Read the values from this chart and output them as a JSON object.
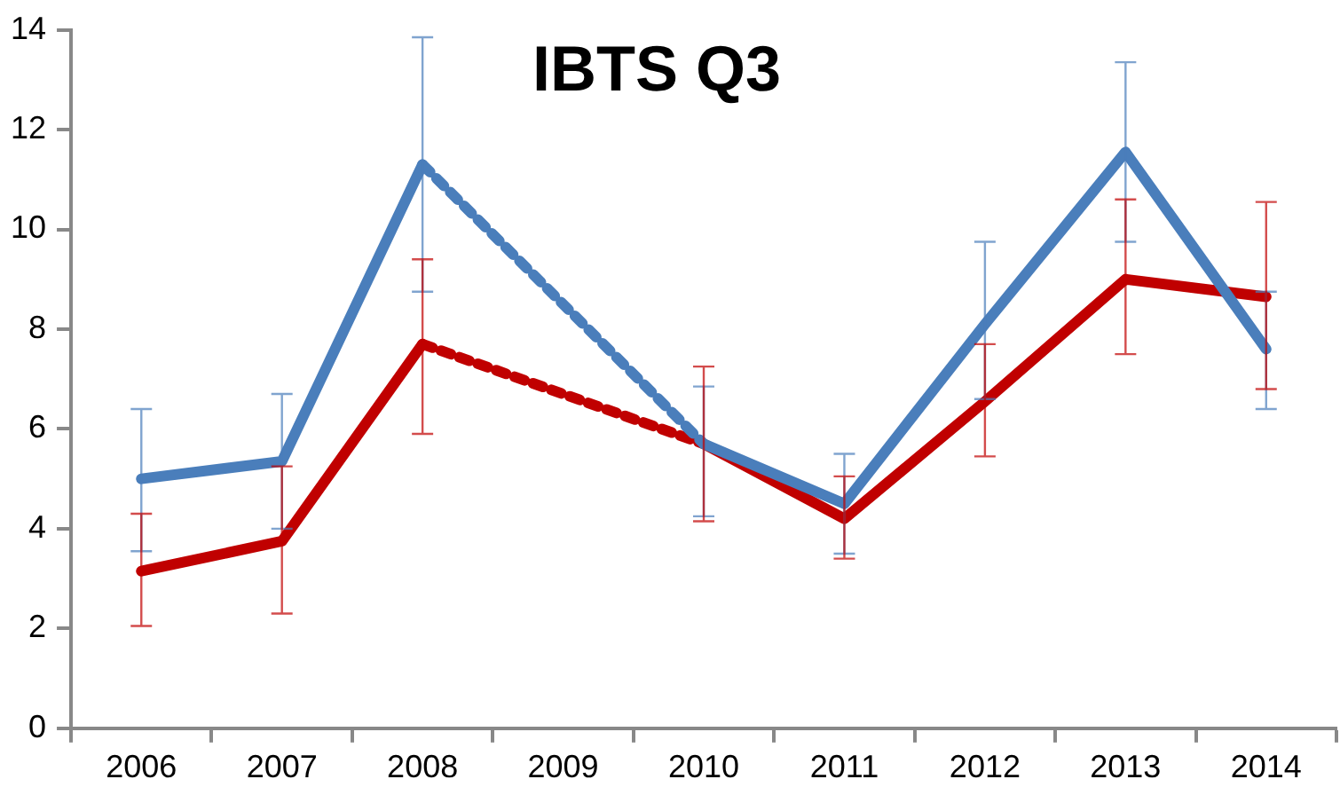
{
  "chart_data": {
    "type": "line",
    "title": "IBTS Q3",
    "categories": [
      "2006",
      "2007",
      "2008",
      "2009",
      "2010",
      "2011",
      "2012",
      "2013",
      "2014"
    ],
    "series": [
      {
        "color": "#4a7ebb",
        "values": [
          5.0,
          5.35,
          11.3,
          null,
          5.7,
          4.5,
          8.1,
          11.55,
          7.6
        ],
        "errors": [
          [
            3.55,
            6.4
          ],
          [
            4.0,
            6.7
          ],
          [
            8.75,
            13.85
          ],
          null,
          [
            4.25,
            6.85
          ],
          [
            3.5,
            5.5
          ],
          [
            6.6,
            9.75
          ],
          [
            9.75,
            13.35
          ],
          [
            6.4,
            8.75
          ]
        ]
      },
      {
        "color": "#c00000",
        "values": [
          3.15,
          3.75,
          7.7,
          null,
          5.7,
          4.2,
          6.55,
          9.0,
          8.65
        ],
        "errors": [
          [
            2.05,
            4.3
          ],
          [
            2.3,
            5.25
          ],
          [
            5.9,
            9.4
          ],
          null,
          [
            4.15,
            7.25
          ],
          [
            3.4,
            5.05
          ],
          [
            5.45,
            7.7
          ],
          [
            7.5,
            10.6
          ],
          [
            6.8,
            10.55
          ]
        ]
      }
    ],
    "ylim": [
      0,
      14
    ],
    "yticks": [
      0,
      2,
      4,
      6,
      8,
      10,
      12,
      14
    ],
    "grid": false,
    "legend": false,
    "marker": "none",
    "line_style": "solid"
  }
}
